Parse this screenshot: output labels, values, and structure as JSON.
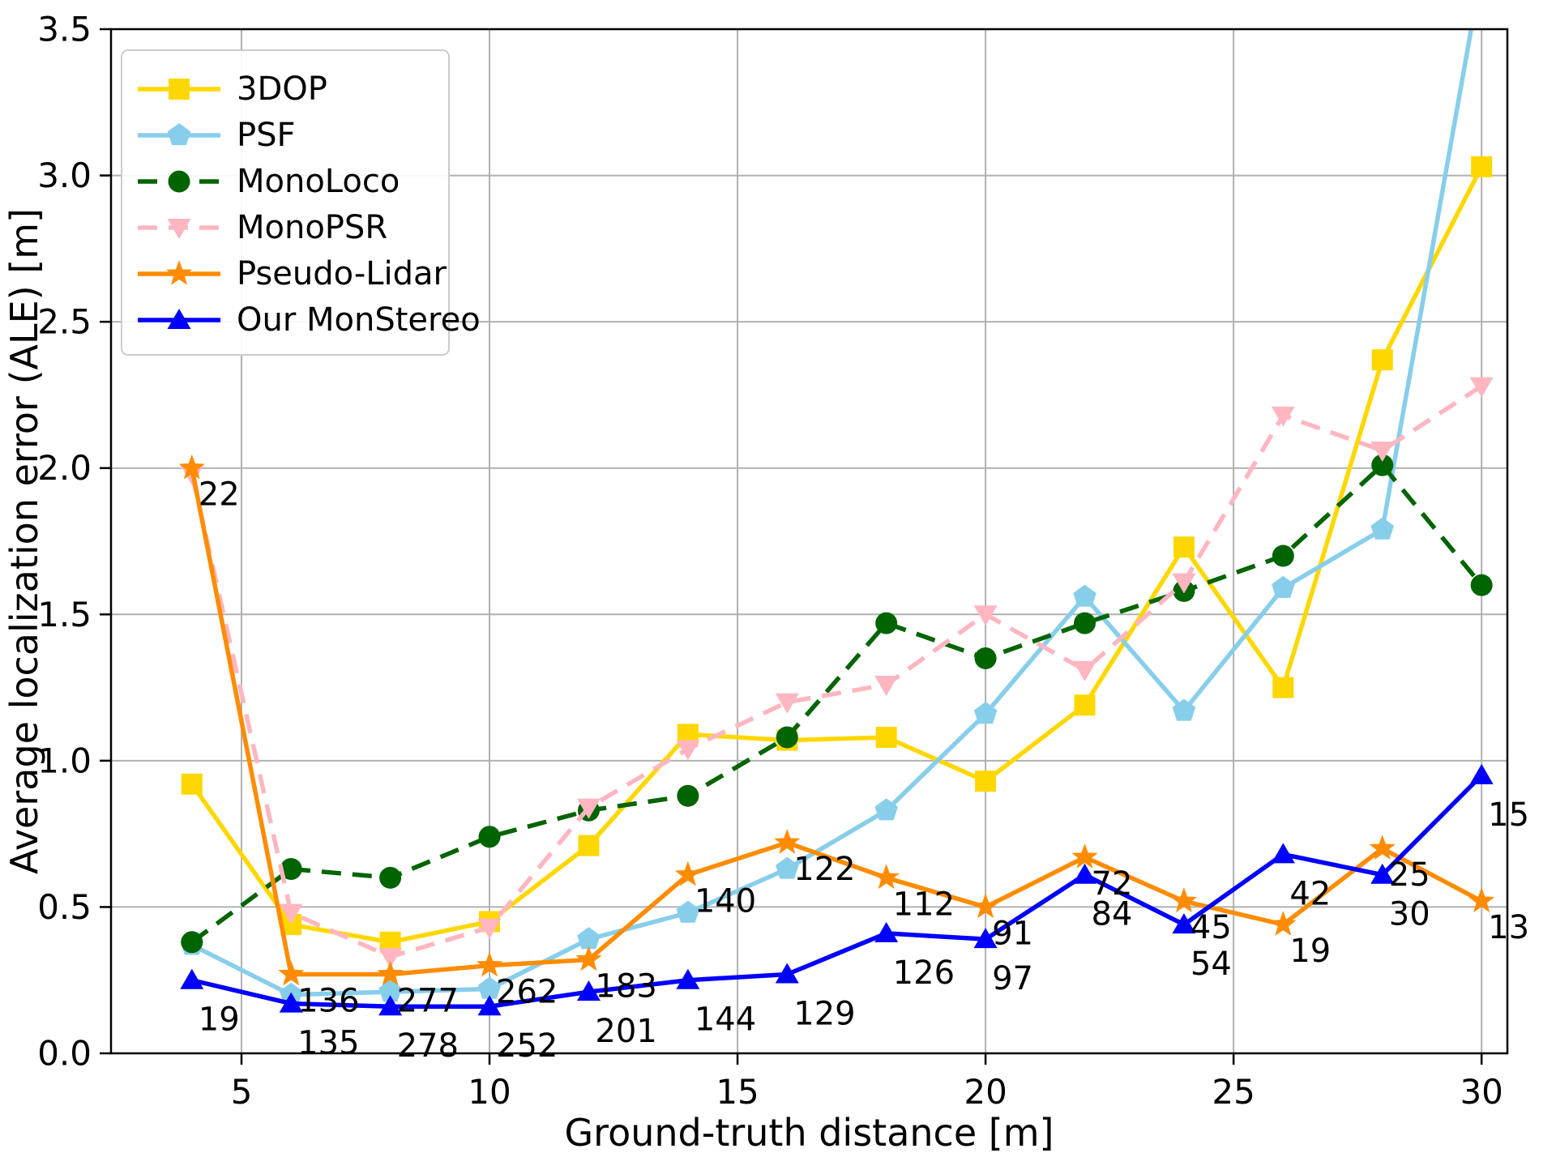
{
  "figure": {
    "background": "#ffffff"
  },
  "chart_data": {
    "type": "line",
    "title": "",
    "xlabel": "Ground-truth distance [m]",
    "ylabel": "Average localization error (ALE) [m]",
    "xlim": [
      2.37,
      30.52
    ],
    "ylim": [
      0.0,
      3.5
    ],
    "xticks": [
      5,
      10,
      15,
      20,
      25,
      30
    ],
    "yticks": [
      0.0,
      0.5,
      1.0,
      1.5,
      2.0,
      2.5,
      3.0,
      3.5
    ],
    "grid": true,
    "grid_color": "#b0b0b0",
    "spine_color": "#000000",
    "legend_position": "upper-left",
    "x": [
      4,
      6,
      8,
      10,
      12,
      14,
      16,
      18,
      20,
      22,
      24,
      26,
      28,
      30
    ],
    "series": [
      {
        "name": "3DOP",
        "color": "#FFD700",
        "marker": "square",
        "dash": null,
        "values": [
          0.92,
          0.44,
          0.38,
          0.45,
          0.71,
          1.09,
          1.07,
          1.08,
          0.93,
          1.19,
          1.73,
          1.25,
          2.37,
          3.03
        ]
      },
      {
        "name": "PSF",
        "color": "#87CEEB",
        "marker": "pentagon",
        "dash": null,
        "values": [
          0.37,
          0.2,
          0.21,
          0.22,
          0.39,
          0.48,
          0.63,
          0.83,
          1.16,
          1.56,
          1.17,
          1.59,
          1.79,
          3.7
        ]
      },
      {
        "name": "MonoLoco",
        "color": "#006400",
        "marker": "circle",
        "dash": [
          24,
          14
        ],
        "values": [
          0.38,
          0.63,
          0.6,
          0.74,
          0.83,
          0.88,
          1.08,
          1.47,
          1.35,
          1.47,
          1.58,
          1.7,
          2.01,
          1.6
        ]
      },
      {
        "name": "MonoPSR",
        "color": "#FFB6C1",
        "marker": "triangle-down",
        "dash": [
          24,
          14
        ],
        "values": [
          1.98,
          0.48,
          0.33,
          0.43,
          0.84,
          1.04,
          1.2,
          1.26,
          1.5,
          1.31,
          1.61,
          2.18,
          2.06,
          2.28
        ]
      },
      {
        "name": "Pseudo-Lidar",
        "color": "#FF8C00",
        "marker": "star",
        "dash": null,
        "values": [
          2.0,
          0.27,
          0.27,
          0.3,
          0.32,
          0.61,
          0.72,
          0.6,
          0.5,
          0.67,
          0.52,
          0.44,
          0.7,
          0.52
        ]
      },
      {
        "name": "Our MonStereo",
        "color": "#0000FF",
        "marker": "triangle-up",
        "dash": null,
        "values": [
          0.25,
          0.17,
          0.16,
          0.16,
          0.21,
          0.25,
          0.27,
          0.41,
          0.39,
          0.61,
          0.44,
          0.68,
          0.61,
          0.95
        ]
      }
    ],
    "annotations": {
      "pseudo_lidar_counts": [
        22,
        136,
        277,
        262,
        183,
        140,
        122,
        112,
        91,
        72,
        45,
        19,
        25,
        13
      ],
      "monstereo_counts": [
        19,
        135,
        278,
        252,
        201,
        144,
        129,
        126,
        97,
        84,
        54,
        42,
        30,
        15
      ]
    },
    "legend_labels": [
      "3DOP",
      "PSF",
      "MonoLoco",
      "MonoPSR",
      "Pseudo-Lidar",
      "Our MonStereo"
    ]
  }
}
